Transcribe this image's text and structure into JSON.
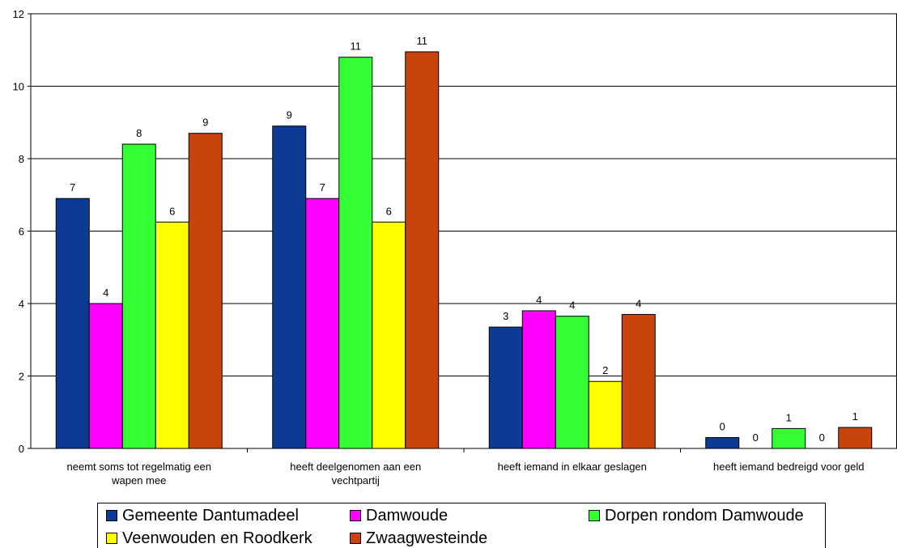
{
  "chart_data": {
    "type": "bar",
    "categories": [
      [
        "neemt soms tot regelmatig een",
        "wapen mee"
      ],
      [
        "heeft deelgenomen aan een",
        "vechtpartij"
      ],
      [
        "heeft iemand in elkaar geslagen"
      ],
      [
        "heeft iemand bedreigd voor geld"
      ]
    ],
    "series": [
      {
        "name": "Gemeente Dantumadeel",
        "color": "#0d3a94",
        "values": [
          6.9,
          8.9,
          3.35,
          0.3
        ],
        "labels": [
          "7",
          "9",
          "3",
          "0"
        ]
      },
      {
        "name": "Damwoude",
        "color": "#ff00ff",
        "values": [
          4.0,
          6.9,
          3.8,
          0.0
        ],
        "labels": [
          "4",
          "7",
          "4",
          "0"
        ]
      },
      {
        "name": "Dorpen rondom Damwoude",
        "color": "#33ff33",
        "values": [
          8.4,
          10.8,
          3.65,
          0.55
        ],
        "labels": [
          "8",
          "11",
          "4",
          "1"
        ]
      },
      {
        "name": "Veenwouden en Roodkerk",
        "color": "#ffff00",
        "values": [
          6.25,
          6.25,
          1.85,
          0.0
        ],
        "labels": [
          "6",
          "6",
          "2",
          "0"
        ]
      },
      {
        "name": "Zwaagwesteinde",
        "color": "#c8440c",
        "values": [
          8.7,
          10.95,
          3.7,
          0.58
        ],
        "labels": [
          "9",
          "11",
          "4",
          "1"
        ]
      }
    ],
    "ylim": [
      0,
      12
    ],
    "yticks": [
      "0",
      "2",
      "4",
      "6",
      "8",
      "10",
      "12"
    ],
    "grid": true,
    "legend_position": "bottom"
  }
}
